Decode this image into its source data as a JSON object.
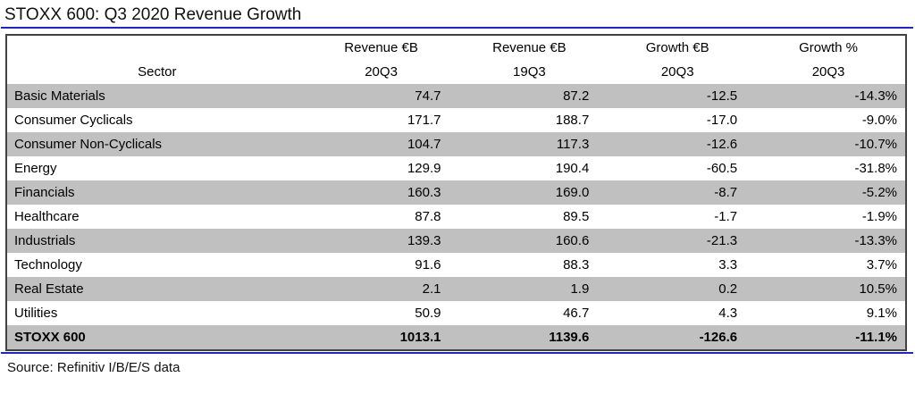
{
  "colors": {
    "accent_blue": "#2323bd",
    "stripe_gray": "#c0c0c0",
    "table_border": "#424242"
  },
  "chart_data": {
    "type": "table",
    "title": "STOXX 600: Q3 2020 Revenue Growth",
    "columns": [
      {
        "line1": "",
        "line2": "Sector"
      },
      {
        "line1": "Revenue €B",
        "line2": "20Q3"
      },
      {
        "line1": "Revenue €B",
        "line2": "19Q3"
      },
      {
        "line1": "Growth €B",
        "line2": "20Q3"
      },
      {
        "line1": "Growth %",
        "line2": "20Q3"
      }
    ],
    "rows": [
      [
        "Basic Materials",
        "74.7",
        "87.2",
        "-12.5",
        "-14.3%"
      ],
      [
        "Consumer Cyclicals",
        "171.7",
        "188.7",
        "-17.0",
        "-9.0%"
      ],
      [
        "Consumer Non-Cyclicals",
        "104.7",
        "117.3",
        "-12.6",
        "-10.7%"
      ],
      [
        "Energy",
        "129.9",
        "190.4",
        "-60.5",
        "-31.8%"
      ],
      [
        "Financials",
        "160.3",
        "169.0",
        "-8.7",
        "-5.2%"
      ],
      [
        "Healthcare",
        "87.8",
        "89.5",
        "-1.7",
        "-1.9%"
      ],
      [
        "Industrials",
        "139.3",
        "160.6",
        "-21.3",
        "-13.3%"
      ],
      [
        "Technology",
        "91.6",
        "88.3",
        "3.3",
        "3.7%"
      ],
      [
        "Real Estate",
        "2.1",
        "1.9",
        "0.2",
        "10.5%"
      ],
      [
        "Utilities",
        "50.9",
        "46.7",
        "4.3",
        "9.1%"
      ]
    ],
    "total_row": [
      "STOXX 600",
      "1013.1",
      "1139.6",
      "-126.6",
      "-11.1%"
    ],
    "source": "Source: Refinitiv I/B/E/S data"
  }
}
